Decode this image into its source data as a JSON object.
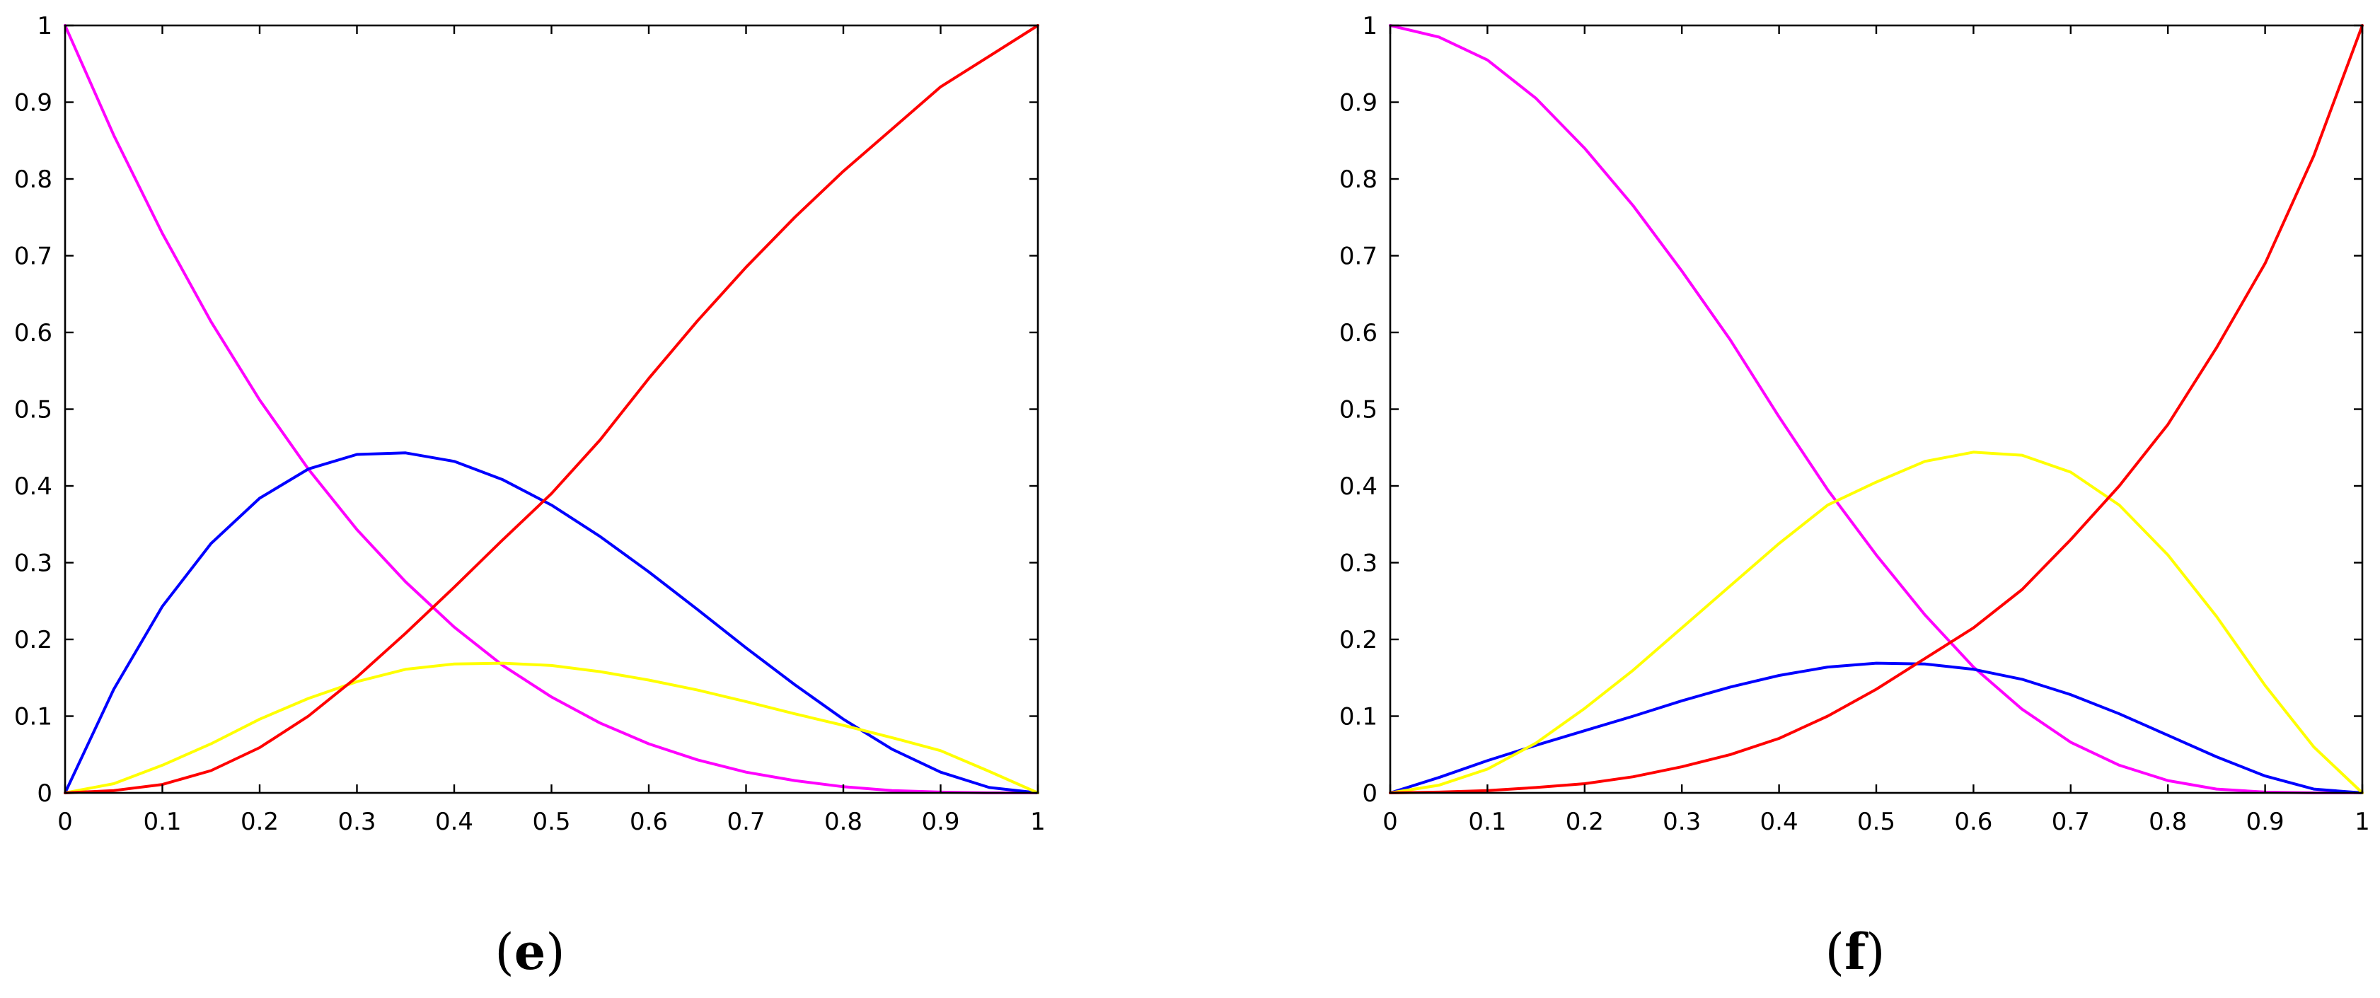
{
  "chart_data": [
    {
      "type": "line",
      "caption": "e",
      "xlim": [
        0,
        1
      ],
      "ylim": [
        0,
        1
      ],
      "xticks": [
        "0",
        "0.1",
        "0.2",
        "0.3",
        "0.4",
        "0.5",
        "0.6",
        "0.7",
        "0.8",
        "0.9",
        "1"
      ],
      "yticks": [
        "0",
        "0.1",
        "0.2",
        "0.3",
        "0.4",
        "0.5",
        "0.6",
        "0.7",
        "0.8",
        "0.9",
        "1"
      ],
      "grid": false,
      "x": [
        0,
        0.05,
        0.1,
        0.15,
        0.2,
        0.25,
        0.3,
        0.35,
        0.4,
        0.45,
        0.5,
        0.55,
        0.6,
        0.65,
        0.7,
        0.75,
        0.8,
        0.85,
        0.9,
        0.95,
        1
      ],
      "series": [
        {
          "color": "#ff00ff",
          "values": [
            1,
            0.857,
            0.729,
            0.614,
            0.512,
            0.422,
            0.343,
            0.275,
            0.216,
            0.166,
            0.125,
            0.091,
            0.064,
            0.043,
            0.027,
            0.016,
            0.008,
            0.003,
            0.001,
            0.0,
            0
          ]
        },
        {
          "color": "#0000ff",
          "values": [
            0,
            0.135,
            0.243,
            0.325,
            0.384,
            0.422,
            0.441,
            0.443,
            0.432,
            0.408,
            0.375,
            0.334,
            0.288,
            0.239,
            0.189,
            0.141,
            0.096,
            0.057,
            0.027,
            0.007,
            0
          ]
        },
        {
          "color": "#ffff00",
          "values": [
            0,
            0.012,
            0.036,
            0.064,
            0.096,
            0.123,
            0.145,
            0.161,
            0.168,
            0.169,
            0.166,
            0.158,
            0.147,
            0.134,
            0.119,
            0.103,
            0.088,
            0.072,
            0.055,
            0.028,
            0
          ]
        },
        {
          "color": "#ff0000",
          "values": [
            0,
            0.003,
            0.011,
            0.029,
            0.059,
            0.1,
            0.151,
            0.208,
            0.268,
            0.33,
            0.39,
            0.46,
            0.54,
            0.615,
            0.685,
            0.75,
            0.81,
            0.865,
            0.92,
            0.96,
            1
          ]
        }
      ]
    },
    {
      "type": "line",
      "caption": "f",
      "xlim": [
        0,
        1
      ],
      "ylim": [
        0,
        1
      ],
      "xticks": [
        "0",
        "0.1",
        "0.2",
        "0.3",
        "0.4",
        "0.5",
        "0.6",
        "0.7",
        "0.8",
        "0.9",
        "1"
      ],
      "yticks": [
        "0",
        "0.1",
        "0.2",
        "0.3",
        "0.4",
        "0.5",
        "0.6",
        "0.7",
        "0.8",
        "0.9",
        "1"
      ],
      "grid": false,
      "x": [
        0,
        0.05,
        0.1,
        0.15,
        0.2,
        0.25,
        0.3,
        0.35,
        0.4,
        0.45,
        0.5,
        0.55,
        0.6,
        0.65,
        0.7,
        0.75,
        0.8,
        0.85,
        0.9,
        0.95,
        1
      ],
      "series": [
        {
          "color": "#ff00ff",
          "values": [
            1,
            0.985,
            0.955,
            0.905,
            0.84,
            0.765,
            0.68,
            0.59,
            0.49,
            0.395,
            0.31,
            0.232,
            0.164,
            0.109,
            0.066,
            0.036,
            0.016,
            0.005,
            0.001,
            0.0,
            0
          ]
        },
        {
          "color": "#0000ff",
          "values": [
            0,
            0.02,
            0.042,
            0.062,
            0.081,
            0.1,
            0.12,
            0.138,
            0.153,
            0.164,
            0.169,
            0.168,
            0.161,
            0.148,
            0.128,
            0.103,
            0.075,
            0.047,
            0.022,
            0.005,
            0
          ]
        },
        {
          "color": "#ffff00",
          "values": [
            0,
            0.01,
            0.031,
            0.065,
            0.11,
            0.16,
            0.215,
            0.27,
            0.325,
            0.375,
            0.405,
            0.432,
            0.444,
            0.44,
            0.418,
            0.375,
            0.31,
            0.23,
            0.14,
            0.06,
            0
          ]
        },
        {
          "color": "#ff0000",
          "values": [
            0,
            0.001,
            0.003,
            0.007,
            0.012,
            0.021,
            0.034,
            0.05,
            0.071,
            0.1,
            0.135,
            0.175,
            0.215,
            0.265,
            0.33,
            0.4,
            0.48,
            0.58,
            0.69,
            0.83,
            1
          ]
        }
      ]
    }
  ]
}
